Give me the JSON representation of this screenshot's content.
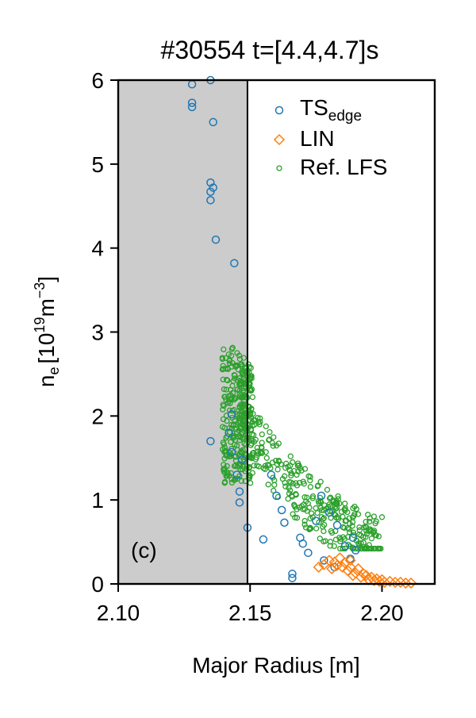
{
  "chart_data": {
    "type": "scatter",
    "title": "#30554 t=[4.4,4.7]s",
    "xlabel": "Major Radius [m]",
    "ylabel": {
      "base": "n",
      "sub": "e",
      "units_pre": "[10",
      "units_exp1": "19",
      "units_mid": "m",
      "units_exp2": "−3",
      "units_post": "]"
    },
    "xlim": [
      2.1,
      2.22
    ],
    "ylim": [
      0,
      6
    ],
    "xticks": [
      "2.10",
      "2.15",
      "2.20"
    ],
    "xtick_values": [
      2.1,
      2.15,
      2.2
    ],
    "yticks": [
      "0",
      "1",
      "2",
      "3",
      "4",
      "5",
      "6"
    ],
    "ytick_values": [
      0,
      1,
      2,
      3,
      4,
      5,
      6
    ],
    "panel_label": "(c)",
    "shaded_region": {
      "x_from": 2.1,
      "x_to": 2.149,
      "color": "#cccccc"
    },
    "vertical_line_x": 2.149,
    "legend_position": "top-right",
    "legend": [
      {
        "label": "TS",
        "sub": "edge",
        "marker": "circle",
        "color": "#1f77b4"
      },
      {
        "label": "LIN",
        "sub": "",
        "marker": "diamond",
        "color": "#ff7f0e"
      },
      {
        "label": "Ref. LFS",
        "sub": "",
        "marker": "small-circle",
        "color": "#2ca02c"
      }
    ],
    "series": [
      {
        "name": "TS_edge",
        "marker": "circle",
        "color": "#1f77b4",
        "points": [
          [
            2.128,
            5.95
          ],
          [
            2.135,
            6.0
          ],
          [
            2.128,
            5.73
          ],
          [
            2.128,
            5.68
          ],
          [
            2.136,
            5.5
          ],
          [
            2.135,
            4.78
          ],
          [
            2.136,
            4.72
          ],
          [
            2.135,
            4.67
          ],
          [
            2.135,
            4.57
          ],
          [
            2.137,
            4.1
          ],
          [
            2.144,
            3.82
          ],
          [
            2.143,
            2.02
          ],
          [
            2.142,
            1.8
          ],
          [
            2.135,
            1.7
          ],
          [
            2.143,
            1.57
          ],
          [
            2.147,
            1.48
          ],
          [
            2.145,
            1.3
          ],
          [
            2.146,
            1.1
          ],
          [
            2.146,
            0.97
          ],
          [
            2.149,
            0.67
          ],
          [
            2.155,
            0.53
          ],
          [
            2.158,
            1.3
          ],
          [
            2.16,
            1.05
          ],
          [
            2.162,
            0.88
          ],
          [
            2.163,
            0.73
          ],
          [
            2.169,
            0.55
          ],
          [
            2.17,
            0.48
          ],
          [
            2.166,
            0.12
          ],
          [
            2.166,
            0.07
          ],
          [
            2.172,
            0.37
          ],
          [
            2.175,
            0.75
          ],
          [
            2.177,
            1.05
          ],
          [
            2.18,
            0.85
          ],
          [
            2.183,
            0.7
          ],
          [
            2.186,
            0.45
          ],
          [
            2.188,
            0.3
          ],
          [
            2.189,
            0.55
          ],
          [
            2.19,
            0.4
          ],
          [
            2.178,
            0.28
          ],
          [
            2.182,
            0.2
          ]
        ]
      },
      {
        "name": "LIN",
        "marker": "diamond",
        "color": "#ff7f0e",
        "points": [
          [
            2.176,
            0.2
          ],
          [
            2.178,
            0.23
          ],
          [
            2.18,
            0.28
          ],
          [
            2.181,
            0.18
          ],
          [
            2.182,
            0.26
          ],
          [
            2.183,
            0.22
          ],
          [
            2.184,
            0.31
          ],
          [
            2.185,
            0.2
          ],
          [
            2.186,
            0.25
          ],
          [
            2.187,
            0.16
          ],
          [
            2.188,
            0.2
          ],
          [
            2.188,
            0.28
          ],
          [
            2.189,
            0.1
          ],
          [
            2.19,
            0.13
          ],
          [
            2.191,
            0.18
          ],
          [
            2.192,
            0.08
          ],
          [
            2.193,
            0.12
          ],
          [
            2.194,
            0.1
          ],
          [
            2.195,
            0.05
          ],
          [
            2.196,
            0.08
          ],
          [
            2.197,
            0.04
          ],
          [
            2.198,
            0.06
          ],
          [
            2.199,
            0.03
          ],
          [
            2.2,
            0.05
          ],
          [
            2.201,
            0.02
          ],
          [
            2.203,
            0.03
          ],
          [
            2.205,
            0.02
          ],
          [
            2.207,
            0.02
          ],
          [
            2.209,
            0.01
          ],
          [
            2.211,
            0.01
          ]
        ]
      },
      {
        "name": "Ref. LFS",
        "marker": "small-circle",
        "color": "#2ca02c",
        "trend": [
          [
            2.14,
            2.75
          ],
          [
            2.142,
            2.6
          ],
          [
            2.144,
            2.35
          ],
          [
            2.146,
            2.1
          ],
          [
            2.148,
            1.9
          ],
          [
            2.15,
            1.8
          ],
          [
            2.153,
            1.68
          ],
          [
            2.156,
            1.55
          ],
          [
            2.159,
            1.42
          ],
          [
            2.162,
            1.3
          ],
          [
            2.165,
            1.2
          ],
          [
            2.168,
            1.1
          ],
          [
            2.172,
            1.0
          ],
          [
            2.176,
            0.9
          ],
          [
            2.18,
            0.8
          ],
          [
            2.184,
            0.7
          ],
          [
            2.188,
            0.6
          ],
          [
            2.192,
            0.55
          ],
          [
            2.196,
            0.48
          ],
          [
            2.199,
            0.45
          ]
        ],
        "band_halfwidth": 0.35,
        "count": 620
      }
    ]
  }
}
